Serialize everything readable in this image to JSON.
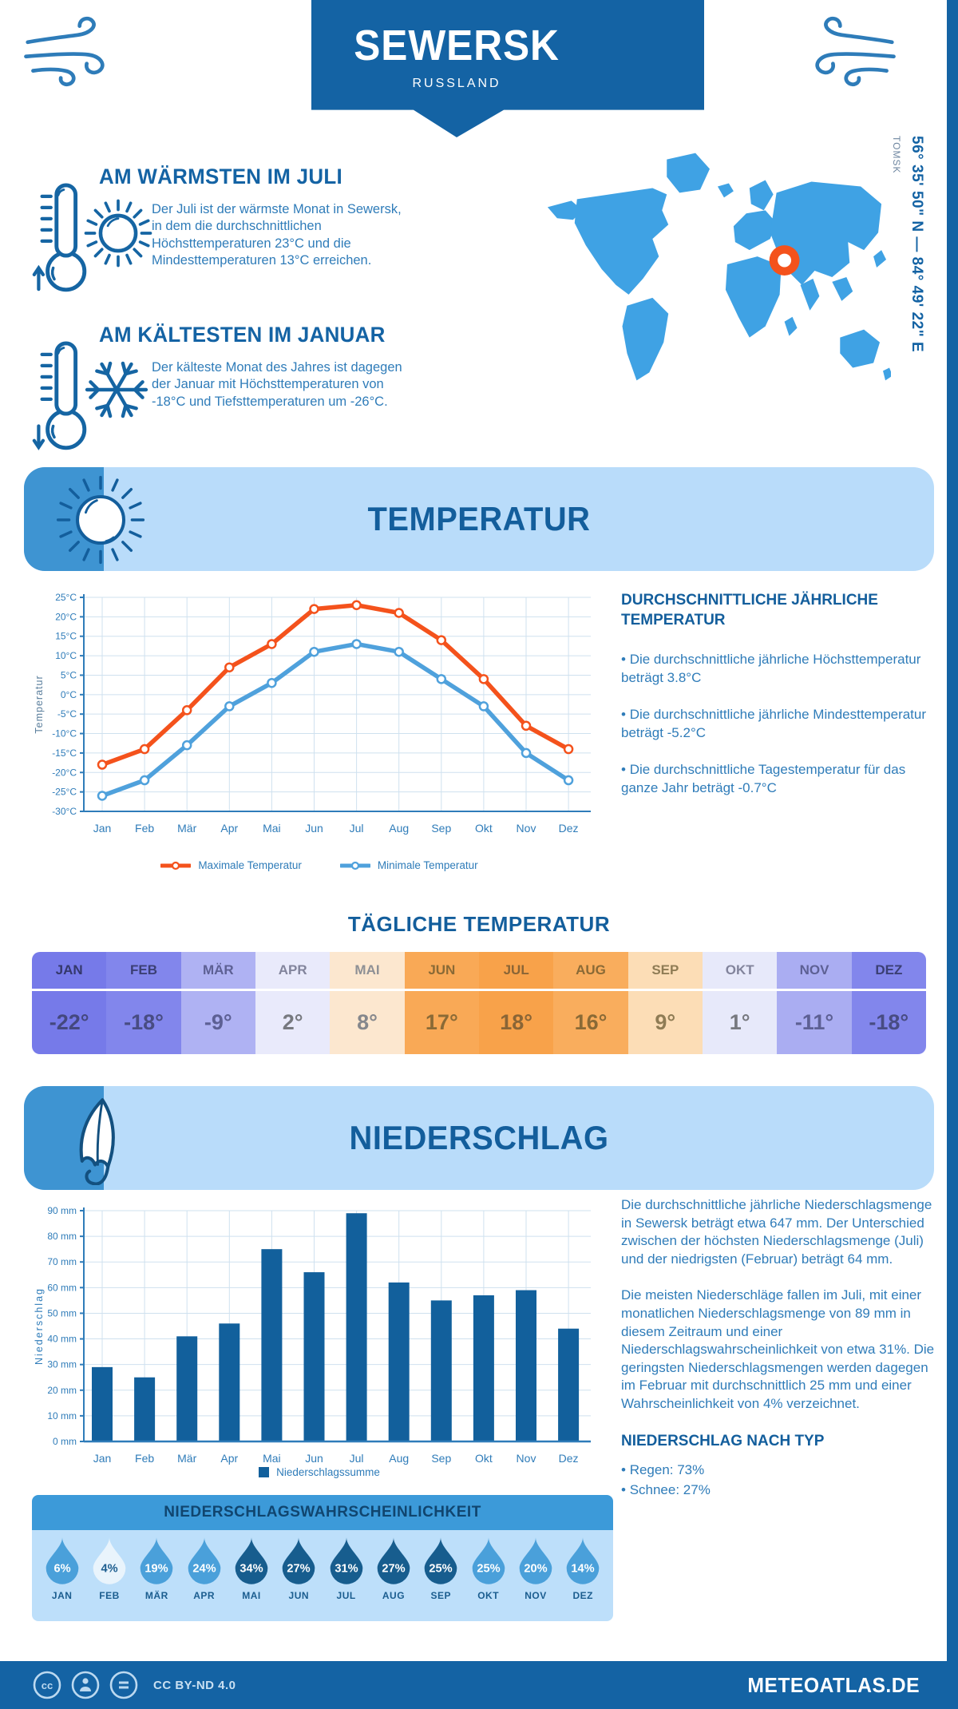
{
  "header": {
    "title": "SEWERSK",
    "subtitle": "RUSSLAND"
  },
  "location": {
    "coordinates": "56° 35' 50\" N — 84° 49' 22\" E",
    "region": "TOMSK",
    "marker_color": "#f4521c",
    "map_color": "#3fa2e4"
  },
  "highlights": {
    "warmest": {
      "title": "AM WÄRMSTEN IM JULI",
      "text": "Der Juli ist der wärmste Monat in Sewersk, in dem die durchschnittlichen Höchsttemperaturen 23°C und die Mindesttemperaturen 13°C erreichen."
    },
    "coldest": {
      "title": "AM KÄLTESTEN IM JANUAR",
      "text": "Der kälteste Monat des Jahres ist dagegen der Januar mit Höchsttemperaturen von -18°C und Tiefsttemperaturen um -26°C."
    }
  },
  "sections": {
    "temperature": {
      "title": "TEMPERATUR"
    },
    "precipitation": {
      "title": "NIEDERSCHLAG"
    }
  },
  "chart_data": [
    {
      "type": "line",
      "categories": [
        "Jan",
        "Feb",
        "Mär",
        "Apr",
        "Mai",
        "Jun",
        "Jul",
        "Aug",
        "Sep",
        "Okt",
        "Nov",
        "Dez"
      ],
      "series": [
        {
          "name": "Maximale Temperatur",
          "color": "#f4521c",
          "values": [
            -18,
            -14,
            -4,
            7,
            13,
            22,
            23,
            21,
            14,
            4,
            -8,
            -14
          ]
        },
        {
          "name": "Minimale Temperatur",
          "color": "#4fa1dc",
          "values": [
            -26,
            -22,
            -13,
            -3,
            3,
            11,
            13,
            11,
            4,
            -3,
            -15,
            -22
          ]
        }
      ],
      "ylabel": "Temperatur",
      "ylim": [
        -30,
        25
      ],
      "ytick_step": 5,
      "ytick_suffix": "°C",
      "grid": true,
      "legend_position": "bottom"
    },
    {
      "type": "bar",
      "categories": [
        "Jan",
        "Feb",
        "Mär",
        "Apr",
        "Mai",
        "Jun",
        "Jul",
        "Aug",
        "Sep",
        "Okt",
        "Nov",
        "Dez"
      ],
      "values": [
        29,
        25,
        41,
        46,
        75,
        66,
        89,
        62,
        55,
        57,
        59,
        44
      ],
      "series_name": "Niederschlagssumme",
      "color": "#12609c",
      "ylabel": "Niederschlag",
      "ylim": [
        0,
        90
      ],
      "ytick_step": 10,
      "ytick_suffix": " mm",
      "grid": true,
      "legend_position": "bottom"
    }
  ],
  "annual_temperature": {
    "title": "DURCHSCHNITTLICHE JÄHRLICHE TEMPERATUR",
    "bullets": [
      "Die durchschnittliche jährliche Höchsttemperatur beträgt 3.8°C",
      "Die durchschnittliche jährliche Mindesttemperatur beträgt -5.2°C",
      "Die durchschnittliche Tagestemperatur für das ganze Jahr beträgt -0.7°C"
    ]
  },
  "daily_temperature": {
    "title": "TÄGLICHE TEMPERATUR",
    "months": [
      "JAN",
      "FEB",
      "MÄR",
      "APR",
      "MAI",
      "JUN",
      "JUL",
      "AUG",
      "SEP",
      "OKT",
      "NOV",
      "DEZ"
    ],
    "values": [
      "-22°",
      "-18°",
      "-9°",
      "2°",
      "8°",
      "17°",
      "18°",
      "16°",
      "9°",
      "1°",
      "-11°",
      "-18°"
    ],
    "cell_colors": [
      "#767ae9",
      "#8286ec",
      "#afb2f3",
      "#e9eafb",
      "#fce7cf",
      "#f9a956",
      "#f8a24a",
      "#f9ad5d",
      "#fcddb6",
      "#e7e9fa",
      "#aaadf2",
      "#8286ec"
    ],
    "month_text_colors": [
      "#34386b",
      "#3b3f74",
      "#5d6094",
      "#82849c",
      "#8e9095",
      "#8a6a36",
      "#8a6536",
      "#8a6a36",
      "#8f7c55",
      "#82849c",
      "#5d6094",
      "#3b3f74"
    ],
    "value_text_colors": [
      "#44487e",
      "#484c82",
      "#5d6094",
      "#77797f",
      "#85878c",
      "#8a6a36",
      "#8a6536",
      "#8a6a36",
      "#8f7c55",
      "#77797f",
      "#5d6094",
      "#484c82"
    ]
  },
  "precipitation_text": {
    "paragraphs": [
      "Die durchschnittliche jährliche Niederschlagsmenge in Sewersk beträgt etwa 647 mm. Der Unterschied zwischen der höchsten Niederschlagsmenge (Juli) und der niedrigsten (Februar) beträgt 64 mm.",
      "Die meisten Niederschläge fallen im Juli, mit einer monatlichen Niederschlagsmenge von 89 mm in diesem Zeitraum und einer Niederschlagswahrscheinlichkeit von etwa 31%. Die geringsten Niederschlagsmengen werden dagegen im Februar mit durchschnittlich 25 mm und einer Wahrscheinlichkeit von 4% verzeichnet."
    ],
    "by_type_title": "NIEDERSCHLAG NACH TYP",
    "bullets": [
      "Regen: 73%",
      "Schnee: 27%"
    ]
  },
  "probability": {
    "title": "NIEDERSCHLAGSWAHRSCHEINLICHKEIT",
    "months": [
      "JAN",
      "FEB",
      "MÄR",
      "APR",
      "MAI",
      "JUN",
      "JUL",
      "AUG",
      "SEP",
      "OKT",
      "NOV",
      "DEZ"
    ],
    "values_pct": [
      6,
      4,
      19,
      24,
      34,
      27,
      31,
      27,
      25,
      25,
      20,
      14
    ],
    "drop_colors": [
      "#4aa0da",
      "#e9f4fc",
      "#4aa0da",
      "#4aa0da",
      "#175d8e",
      "#175d8e",
      "#175d8e",
      "#175d8e",
      "#175d8e",
      "#4aa0da",
      "#4aa0da",
      "#4aa0da"
    ],
    "value_text_colors": [
      "#ffffff",
      "#1c5d8f",
      "#ffffff",
      "#ffffff",
      "#ffffff",
      "#ffffff",
      "#ffffff",
      "#ffffff",
      "#ffffff",
      "#ffffff",
      "#ffffff",
      "#ffffff"
    ]
  },
  "footer": {
    "license": "CC BY-ND 4.0",
    "site": "METEOATLAS.DE"
  }
}
